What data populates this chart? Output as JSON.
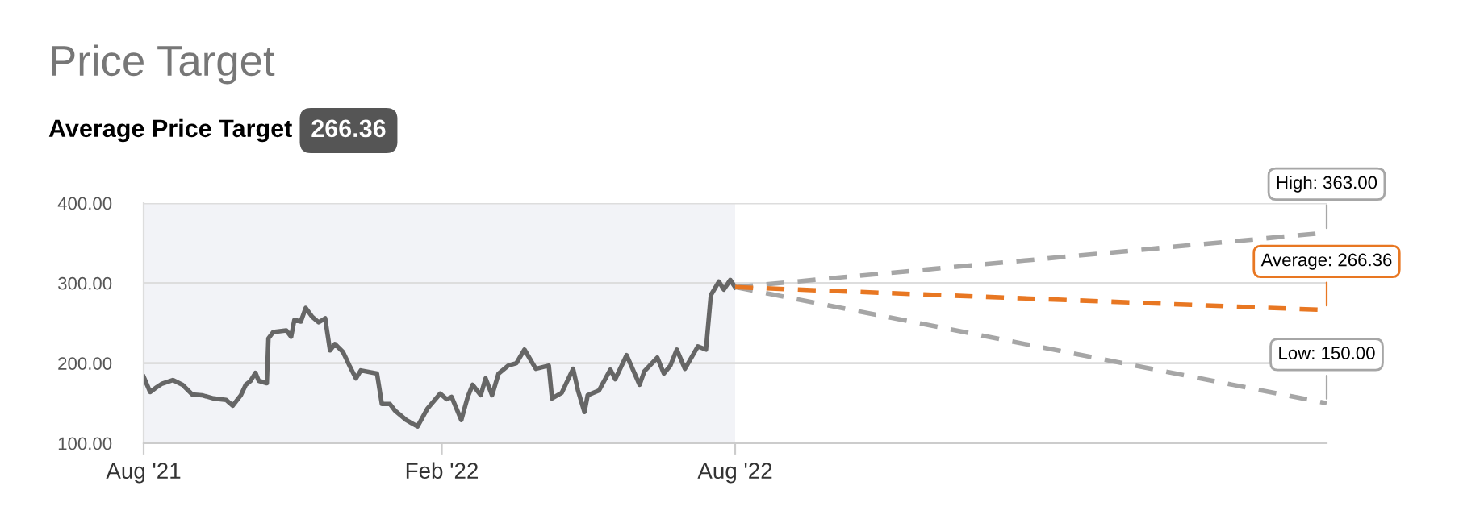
{
  "chart_data": {
    "type": "line",
    "title": "Price Target",
    "subtitle": "Average Price Target",
    "annotations": [
      "266.36",
      {
        "text": "High: 363.00",
        "x": "2023-08-01",
        "y": 363
      },
      {
        "text": "Average: 266.36",
        "x": "2023-08-01",
        "y": 266.36
      },
      {
        "text": "Low: 150.00",
        "x": "2023-08-01",
        "y": 150
      }
    ],
    "series": [
      {
        "color": "#666666",
        "line_style": "solid",
        "x": [
          "2021-08-01",
          "2021-08-05",
          "2021-08-09",
          "2021-08-12",
          "2021-08-19",
          "2021-08-25",
          "2021-08-31",
          "2021-09-06",
          "2021-09-13",
          "2021-09-21",
          "2021-09-25",
          "2021-09-30",
          "2021-10-03",
          "2021-10-06",
          "2021-10-09",
          "2021-10-11",
          "2021-10-16",
          "2021-10-17",
          "2021-10-20",
          "2021-10-28",
          "2021-10-31",
          "2021-11-02",
          "2021-11-06",
          "2021-11-09",
          "2021-11-13",
          "2021-11-17",
          "2021-11-21",
          "2021-11-24",
          "2021-11-27",
          "2021-12-02",
          "2021-12-06",
          "2021-12-10",
          "2021-12-13",
          "2021-12-23",
          "2021-12-26",
          "2021-12-31",
          "2022-01-03",
          "2022-01-10",
          "2022-01-17",
          "2022-01-23",
          "2022-01-31",
          "2022-02-04",
          "2022-02-07",
          "2022-02-13",
          "2022-02-17",
          "2022-02-20",
          "2022-02-25",
          "2022-02-28",
          "2022-03-04",
          "2022-03-08",
          "2022-03-14",
          "2022-03-19",
          "2022-03-24",
          "2022-03-31",
          "2022-04-08",
          "2022-04-10",
          "2022-04-16",
          "2022-04-23",
          "2022-04-26",
          "2022-04-30",
          "2022-05-02",
          "2022-05-09",
          "2022-05-16",
          "2022-05-19",
          "2022-05-26",
          "2022-06-03",
          "2022-06-06",
          "2022-06-14",
          "2022-06-18",
          "2022-06-22",
          "2022-06-26",
          "2022-07-01",
          "2022-07-09",
          "2022-07-14",
          "2022-07-17",
          "2022-07-22",
          "2022-07-25",
          "2022-07-29",
          "2022-08-01"
        ],
        "values": [
          183,
          164,
          170,
          174,
          179,
          173,
          161,
          160,
          156,
          154,
          147,
          160,
          173,
          178,
          188,
          178,
          175,
          231,
          239,
          241,
          233,
          254,
          252,
          269,
          258,
          251,
          256,
          216,
          224,
          214,
          197,
          181,
          191,
          187,
          149,
          149,
          141,
          129,
          121,
          143,
          162,
          155,
          158,
          129,
          158,
          173,
          160,
          181,
          160,
          187,
          197,
          200,
          217,
          193,
          197,
          156,
          163,
          193,
          166,
          139,
          160,
          166,
          192,
          180,
          210,
          173,
          190,
          207,
          187,
          197,
          217,
          193,
          221,
          217,
          285,
          302,
          292,
          304,
          295
        ]
      },
      {
        "color": "#a6a6a6",
        "line_style": "dashed",
        "x": [
          "2022-08-01",
          "2023-08-01"
        ],
        "values": [
          295,
          363
        ]
      },
      {
        "color": "#e87722",
        "line_style": "dashed",
        "x": [
          "2022-08-01",
          "2023-08-01"
        ],
        "values": [
          295,
          266.36
        ]
      },
      {
        "color": "#a6a6a6",
        "line_style": "dashed",
        "x": [
          "2022-08-01",
          "2023-08-01"
        ],
        "values": [
          295,
          150
        ]
      }
    ],
    "bands": [
      {
        "axis": "x",
        "from": "2021-08-01",
        "to": "2022-08-01",
        "color": "#f2f3f7"
      }
    ],
    "xlim": [
      "2021-08-01",
      "2023-08-01"
    ],
    "xticks": [
      {
        "value": "2021-08-01",
        "label": "Aug '21"
      },
      {
        "value": "2022-02-01",
        "label": "Feb '22"
      },
      {
        "value": "2022-08-01",
        "label": "Aug '22"
      }
    ],
    "ylim": [
      100,
      400
    ],
    "yticks": [
      {
        "value": 100,
        "label": "100.00"
      },
      {
        "value": 200,
        "label": "200.00"
      },
      {
        "value": 300,
        "label": "300.00"
      },
      {
        "value": 400,
        "label": "400.00"
      }
    ],
    "grid": "y",
    "legend": false
  }
}
